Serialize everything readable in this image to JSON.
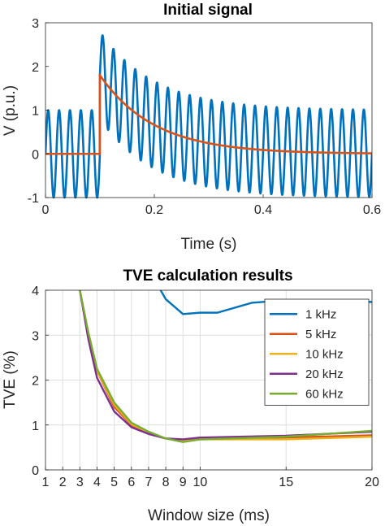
{
  "chart_data": [
    {
      "type": "line",
      "title": "Initial signal",
      "xlabel": "Time (s)",
      "ylabel": "V (p.u.)",
      "xlim": [
        0,
        0.6
      ],
      "ylim": [
        -1,
        3
      ],
      "xticks": [
        0,
        0.2,
        0.4,
        0.6
      ],
      "xtick_labels": [
        "0",
        "0.2",
        "0.4",
        "0.6"
      ],
      "yticks": [
        -1,
        0,
        1,
        2,
        3
      ],
      "ytick_labels": [
        "-1",
        "0",
        "1",
        "2",
        "3"
      ],
      "grid": false,
      "series": [
        {
          "color": "#0072BD",
          "note": "50 Hz sinusoid, amplitude 1; after t=0.1 s plus decaying DC offset",
          "frequency_hz": 50,
          "amplitude": 1,
          "step_time": 0.1,
          "dc_offset": 1.8,
          "decay_tau": 0.1
        },
        {
          "color": "#D95319",
          "x": [
            0,
            0.1,
            0.1,
            0.15,
            0.2,
            0.25,
            0.3,
            0.35,
            0.4,
            0.5,
            0.6
          ],
          "y": [
            0,
            0,
            1.83,
            1.11,
            0.67,
            0.41,
            0.25,
            0.15,
            0.09,
            0.03,
            0.01
          ]
        }
      ]
    },
    {
      "type": "line",
      "title": "TVE calculation results",
      "xlabel": "Window size (ms)",
      "ylabel": "TVE (%)",
      "xlim": [
        1,
        20
      ],
      "ylim": [
        0,
        4
      ],
      "xticks": [
        1,
        2,
        3,
        4,
        5,
        6,
        7,
        8,
        9,
        10,
        15,
        20
      ],
      "xtick_labels": [
        "1",
        "2",
        "3",
        "4",
        "5",
        "6",
        "7",
        "8",
        "9",
        "10",
        "15",
        "20"
      ],
      "yticks": [
        0,
        1,
        2,
        3,
        4
      ],
      "ytick_labels": [
        "0",
        "1",
        "2",
        "3",
        "4"
      ],
      "grid": true,
      "legend_position": "top-right",
      "series": [
        {
          "name": "1 kHz",
          "color": "#0072BD",
          "x": [
            7.7,
            8,
            9,
            10,
            11,
            13,
            14,
            15,
            20
          ],
          "y": [
            4.0,
            3.8,
            3.47,
            3.5,
            3.5,
            3.72,
            3.75,
            3.75,
            3.74
          ]
        },
        {
          "name": "5 kHz",
          "color": "#D95319",
          "x": [
            3,
            3.5,
            4,
            5,
            6,
            7,
            8,
            9,
            10,
            15,
            20
          ],
          "y": [
            4.0,
            3.0,
            2.2,
            1.4,
            1.0,
            0.82,
            0.7,
            0.66,
            0.68,
            0.72,
            0.77
          ]
        },
        {
          "name": "10 kHz",
          "color": "#EDB120",
          "x": [
            3,
            3.5,
            4,
            5,
            6,
            7,
            8,
            9,
            10,
            15,
            20
          ],
          "y": [
            4.0,
            3.0,
            2.2,
            1.45,
            1.02,
            0.83,
            0.7,
            0.66,
            0.68,
            0.68,
            0.74
          ]
        },
        {
          "name": "20 kHz",
          "color": "#7E2F8E",
          "x": [
            3,
            3.5,
            4,
            5,
            6,
            7,
            8,
            9,
            10,
            15,
            20
          ],
          "y": [
            4.0,
            2.9,
            2.05,
            1.3,
            0.95,
            0.8,
            0.7,
            0.68,
            0.72,
            0.76,
            0.85
          ]
        },
        {
          "name": "60 kHz",
          "color": "#77AC30",
          "x": [
            3,
            3.5,
            4,
            5,
            6,
            7,
            8,
            9,
            10,
            15,
            20
          ],
          "y": [
            4.0,
            3.05,
            2.25,
            1.5,
            1.05,
            0.85,
            0.7,
            0.62,
            0.68,
            0.74,
            0.87
          ]
        }
      ]
    }
  ]
}
